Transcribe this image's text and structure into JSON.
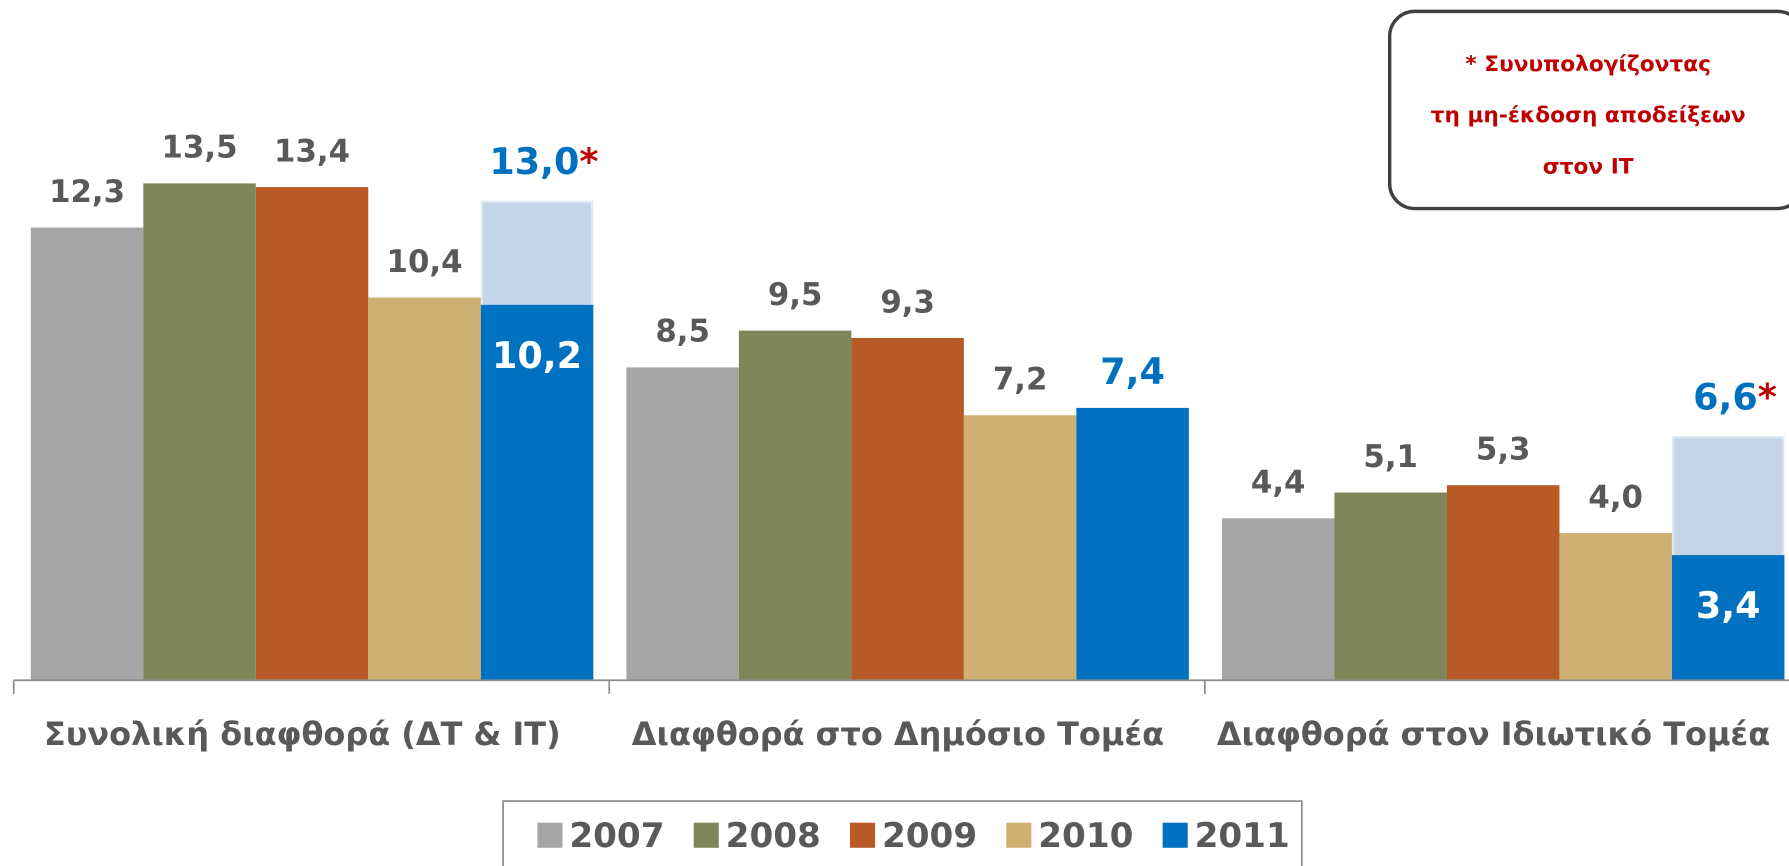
{
  "chart_data": {
    "type": "bar",
    "categories": [
      "Συνολική διαφθορά (ΔΤ & ΙΤ)",
      "Διαφθορά στο Δημόσιο Τομέα",
      "Διαφθορά στον Ιδιωτικό Τομέα"
    ],
    "series": [
      {
        "name": "2007",
        "color": "#a5a5a5",
        "values": [
          12.3,
          8.5,
          4.4
        ],
        "value_labels": [
          "12,3",
          "8,5",
          "4,4"
        ]
      },
      {
        "name": "2008",
        "color": "#7f865a",
        "values": [
          13.5,
          9.5,
          5.1
        ],
        "value_labels": [
          "13,5",
          "9,5",
          "5,1"
        ]
      },
      {
        "name": "2009",
        "color": "#b85a25",
        "values": [
          13.4,
          9.3,
          5.3
        ],
        "value_labels": [
          "13,4",
          "9,3",
          "5,3"
        ]
      },
      {
        "name": "2010",
        "color": "#cfb073",
        "values": [
          10.4,
          7.2,
          4.0
        ],
        "value_labels": [
          "10,4",
          "7,2",
          "4,0"
        ]
      },
      {
        "name": "2011",
        "color": "#0070c0",
        "values": [
          10.2,
          7.4,
          3.4
        ],
        "value_labels": [
          "10,2",
          "7,4",
          "3,4"
        ],
        "total_values": [
          13.0,
          null,
          6.6
        ],
        "total_value_labels": [
          "13,0",
          null,
          "6,6"
        ],
        "total_color": "#c3d5e6"
      }
    ],
    "asterisk": "*",
    "note": [
      "* Συνυπολογίζοντας",
      "τη μη-έκδοση αποδείξεων",
      "στον  IT"
    ],
    "ylim": [
      0,
      15
    ]
  }
}
